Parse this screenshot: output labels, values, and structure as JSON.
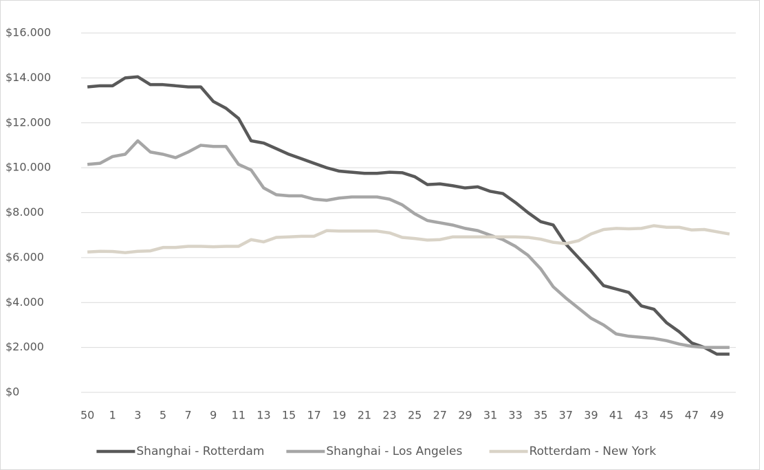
{
  "chart_data": {
    "type": "line",
    "categories": [
      "50",
      null,
      "1",
      null,
      "3",
      null,
      "5",
      null,
      "7",
      null,
      "9",
      null,
      "11",
      null,
      "13",
      null,
      "15",
      null,
      "17",
      null,
      "19",
      null,
      "21",
      null,
      "23",
      null,
      "25",
      null,
      "27",
      null,
      "29",
      null,
      "31",
      null,
      "33",
      null,
      "35",
      null,
      "37",
      null,
      "39",
      null,
      "41",
      null,
      "43",
      null,
      "45",
      null,
      "47",
      null,
      "49",
      null
    ],
    "series": [
      {
        "name": "Shanghai - Rotterdam",
        "color": "#595959",
        "values": [
          13600,
          13650,
          13650,
          14000,
          14050,
          13700,
          13700,
          13650,
          13600,
          13600,
          12950,
          12650,
          12200,
          11200,
          11100,
          10850,
          10600,
          10400,
          10200,
          10000,
          9850,
          9800,
          9750,
          9750,
          9800,
          9780,
          9600,
          9250,
          9280,
          9200,
          9100,
          9150,
          8950,
          8850,
          8450,
          8000,
          7600,
          7450,
          6600,
          6000,
          5400,
          4750,
          4600,
          4450,
          3850,
          3700,
          3100,
          2700,
          2200,
          2000,
          1700,
          1700
        ]
      },
      {
        "name": "Shanghai - Los Angeles",
        "color": "#a6a6a6",
        "values": [
          10150,
          10200,
          10500,
          10600,
          11200,
          10700,
          10600,
          10450,
          10700,
          11000,
          10950,
          10950,
          10150,
          9900,
          9100,
          8800,
          8750,
          8750,
          8600,
          8550,
          8650,
          8700,
          8700,
          8700,
          8600,
          8350,
          7950,
          7650,
          7550,
          7450,
          7300,
          7200,
          7000,
          6800,
          6500,
          6100,
          5500,
          4700,
          4200,
          3750,
          3300,
          3000,
          2600,
          2500,
          2450,
          2400,
          2300,
          2150,
          2050,
          2000,
          2000,
          2000
        ]
      },
      {
        "name": "Rotterdam - New York",
        "color": "#d9d3c7",
        "values": [
          6250,
          6280,
          6270,
          6220,
          6280,
          6300,
          6450,
          6450,
          6500,
          6500,
          6480,
          6500,
          6500,
          6800,
          6700,
          6900,
          6920,
          6950,
          6950,
          7200,
          7180,
          7180,
          7180,
          7180,
          7100,
          6900,
          6850,
          6780,
          6800,
          6920,
          6920,
          6920,
          6920,
          6920,
          6920,
          6900,
          6820,
          6680,
          6620,
          6750,
          7050,
          7250,
          7300,
          7280,
          7300,
          7420,
          7350,
          7350,
          7230,
          7250,
          7150,
          7050
        ]
      }
    ],
    "ylim": [
      0,
      16000
    ],
    "yticks": [
      {
        "value": 0,
        "label": "$0"
      },
      {
        "value": 2000,
        "label": "$2.000"
      },
      {
        "value": 4000,
        "label": "$4.000"
      },
      {
        "value": 6000,
        "label": "$6.000"
      },
      {
        "value": 8000,
        "label": "$8.000"
      },
      {
        "value": 10000,
        "label": "$10.000"
      },
      {
        "value": 12000,
        "label": "$12.000"
      },
      {
        "value": 14000,
        "label": "$14.000"
      },
      {
        "value": 16000,
        "label": "$16.000"
      }
    ],
    "grid": true,
    "legend": "bottom"
  }
}
